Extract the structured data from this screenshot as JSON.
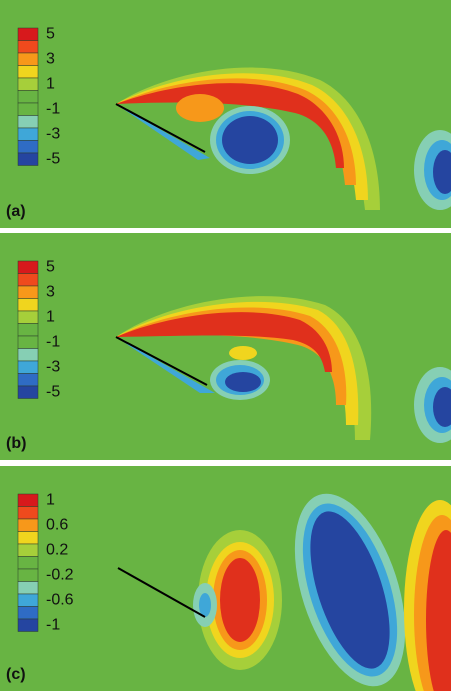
{
  "panels": [
    {
      "label": "(a)",
      "colorbar": {
        "ticks": [
          5,
          3,
          1,
          -1,
          -3,
          -5
        ]
      }
    },
    {
      "label": "(b)",
      "colorbar": {
        "ticks": [
          5,
          3,
          1,
          -1,
          -3,
          -5
        ]
      }
    },
    {
      "label": "(c)",
      "colorbar": {
        "ticks": [
          1,
          0.6,
          0.2,
          -0.2,
          -0.6,
          -1
        ]
      }
    }
  ]
}
